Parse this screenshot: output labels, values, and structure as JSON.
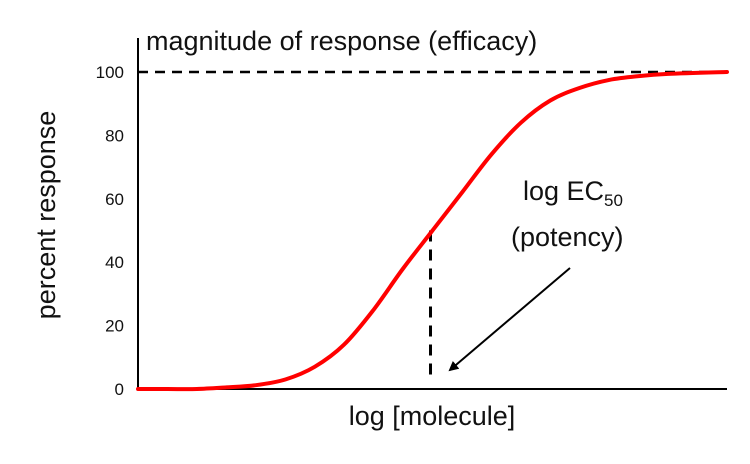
{
  "chart_data": {
    "type": "line",
    "xlabel": "log [molecule]",
    "ylabel": "percent response",
    "yticks": [
      0,
      20,
      40,
      60,
      80,
      100
    ],
    "ylim": [
      0,
      100
    ],
    "grid": false,
    "curve_color": "#ff0000",
    "series": [
      {
        "values": [
          {
            "x": 0.0,
            "y": 0
          },
          {
            "x": 0.05,
            "y": 0
          },
          {
            "x": 0.1,
            "y": 0
          },
          {
            "x": 0.15,
            "y": 0.5
          },
          {
            "x": 0.2,
            "y": 1.2
          },
          {
            "x": 0.25,
            "y": 3
          },
          {
            "x": 0.3,
            "y": 7
          },
          {
            "x": 0.35,
            "y": 14
          },
          {
            "x": 0.4,
            "y": 25
          },
          {
            "x": 0.45,
            "y": 38
          },
          {
            "x": 0.5,
            "y": 50
          },
          {
            "x": 0.55,
            "y": 62
          },
          {
            "x": 0.6,
            "y": 74
          },
          {
            "x": 0.65,
            "y": 84
          },
          {
            "x": 0.7,
            "y": 91
          },
          {
            "x": 0.75,
            "y": 95
          },
          {
            "x": 0.8,
            "y": 97.5
          },
          {
            "x": 0.85,
            "y": 98.7
          },
          {
            "x": 0.9,
            "y": 99.4
          },
          {
            "x": 1.0,
            "y": 100
          }
        ]
      }
    ],
    "annotations": {
      "efficacy_label": "magnitude of response (efficacy)",
      "ec50_label_main": "log EC",
      "ec50_label_sub": "50",
      "ec50_paren": "(potency)",
      "max_line_y": 100,
      "ec50_point": {
        "x": 0.5,
        "y": 50
      }
    }
  }
}
